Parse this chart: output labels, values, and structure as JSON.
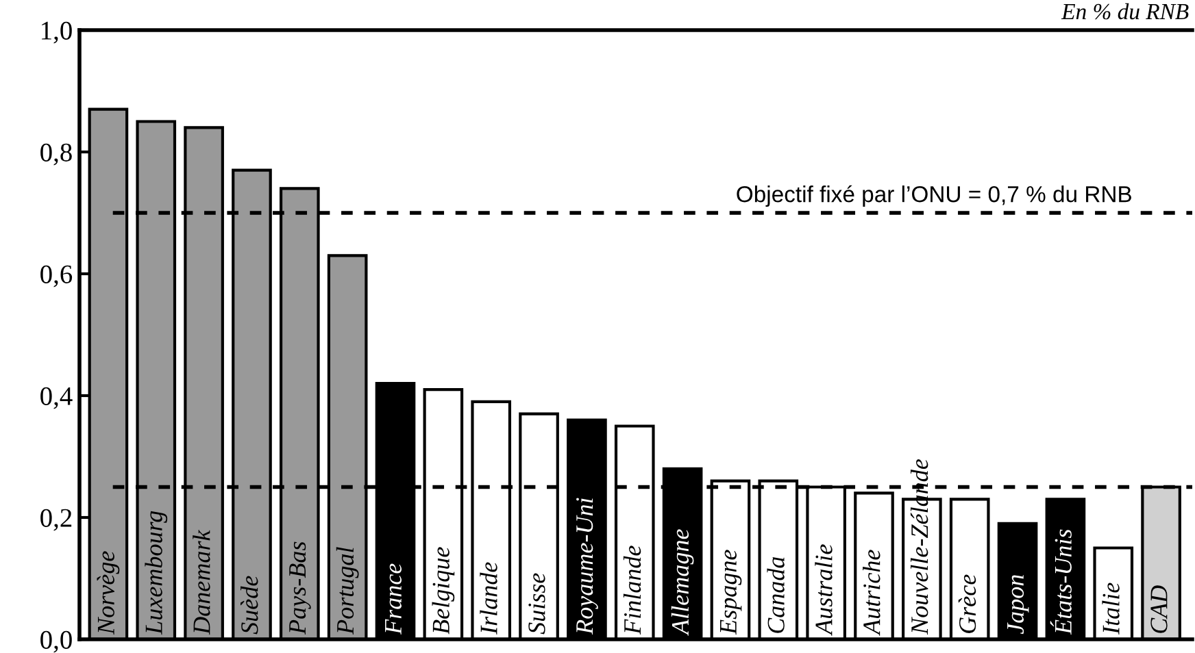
{
  "chart_data": {
    "type": "bar",
    "title": "En % du RNB",
    "categories": [
      "Norvège",
      "Luxembourg",
      "Danemark",
      "Suède",
      "Pays-Bas",
      "Portugal",
      "France",
      "Belgique",
      "Irlande",
      "Suisse",
      "Royaume-Uni",
      "Finlande",
      "Allemagne",
      "Espagne",
      "Canada",
      "Australie",
      "Autriche",
      "Nouvelle-Zélande",
      "Grèce",
      "Japon",
      "États-Unis",
      "Italie",
      "CAD"
    ],
    "values": [
      0.87,
      0.85,
      0.84,
      0.77,
      0.74,
      0.63,
      0.42,
      0.41,
      0.39,
      0.37,
      0.36,
      0.35,
      0.28,
      0.26,
      0.26,
      0.25,
      0.24,
      0.23,
      0.23,
      0.19,
      0.23,
      0.15,
      0.25
    ],
    "colors": [
      "#999999",
      "#999999",
      "#999999",
      "#999999",
      "#999999",
      "#999999",
      "#000000",
      "#ffffff",
      "#ffffff",
      "#ffffff",
      "#000000",
      "#ffffff",
      "#000000",
      "#ffffff",
      "#ffffff",
      "#ffffff",
      "#ffffff",
      "#ffffff",
      "#ffffff",
      "#000000",
      "#000000",
      "#ffffff",
      "#d0d0d0"
    ],
    "ylim": [
      0,
      1.0
    ],
    "yticks": [
      {
        "value": 0,
        "label": "0,0"
      },
      {
        "value": 0.2,
        "label": "0,2"
      },
      {
        "value": 0.4,
        "label": "0,4"
      },
      {
        "value": 0.6,
        "label": "0,6"
      },
      {
        "value": 0.8,
        "label": "0,8"
      },
      {
        "value": 1.0,
        "label": "1,0"
      }
    ],
    "ref_lines": [
      {
        "axis": "y",
        "value": 0.7,
        "label": "Objectif fixé par l’ONU = 0,7 % du RNB",
        "color": "#000000",
        "line_style": "dashed"
      },
      {
        "axis": "y",
        "value": 0.25,
        "label": null,
        "color": "#000000",
        "line_style": "dashed"
      }
    ],
    "grid": false,
    "legend": false
  }
}
